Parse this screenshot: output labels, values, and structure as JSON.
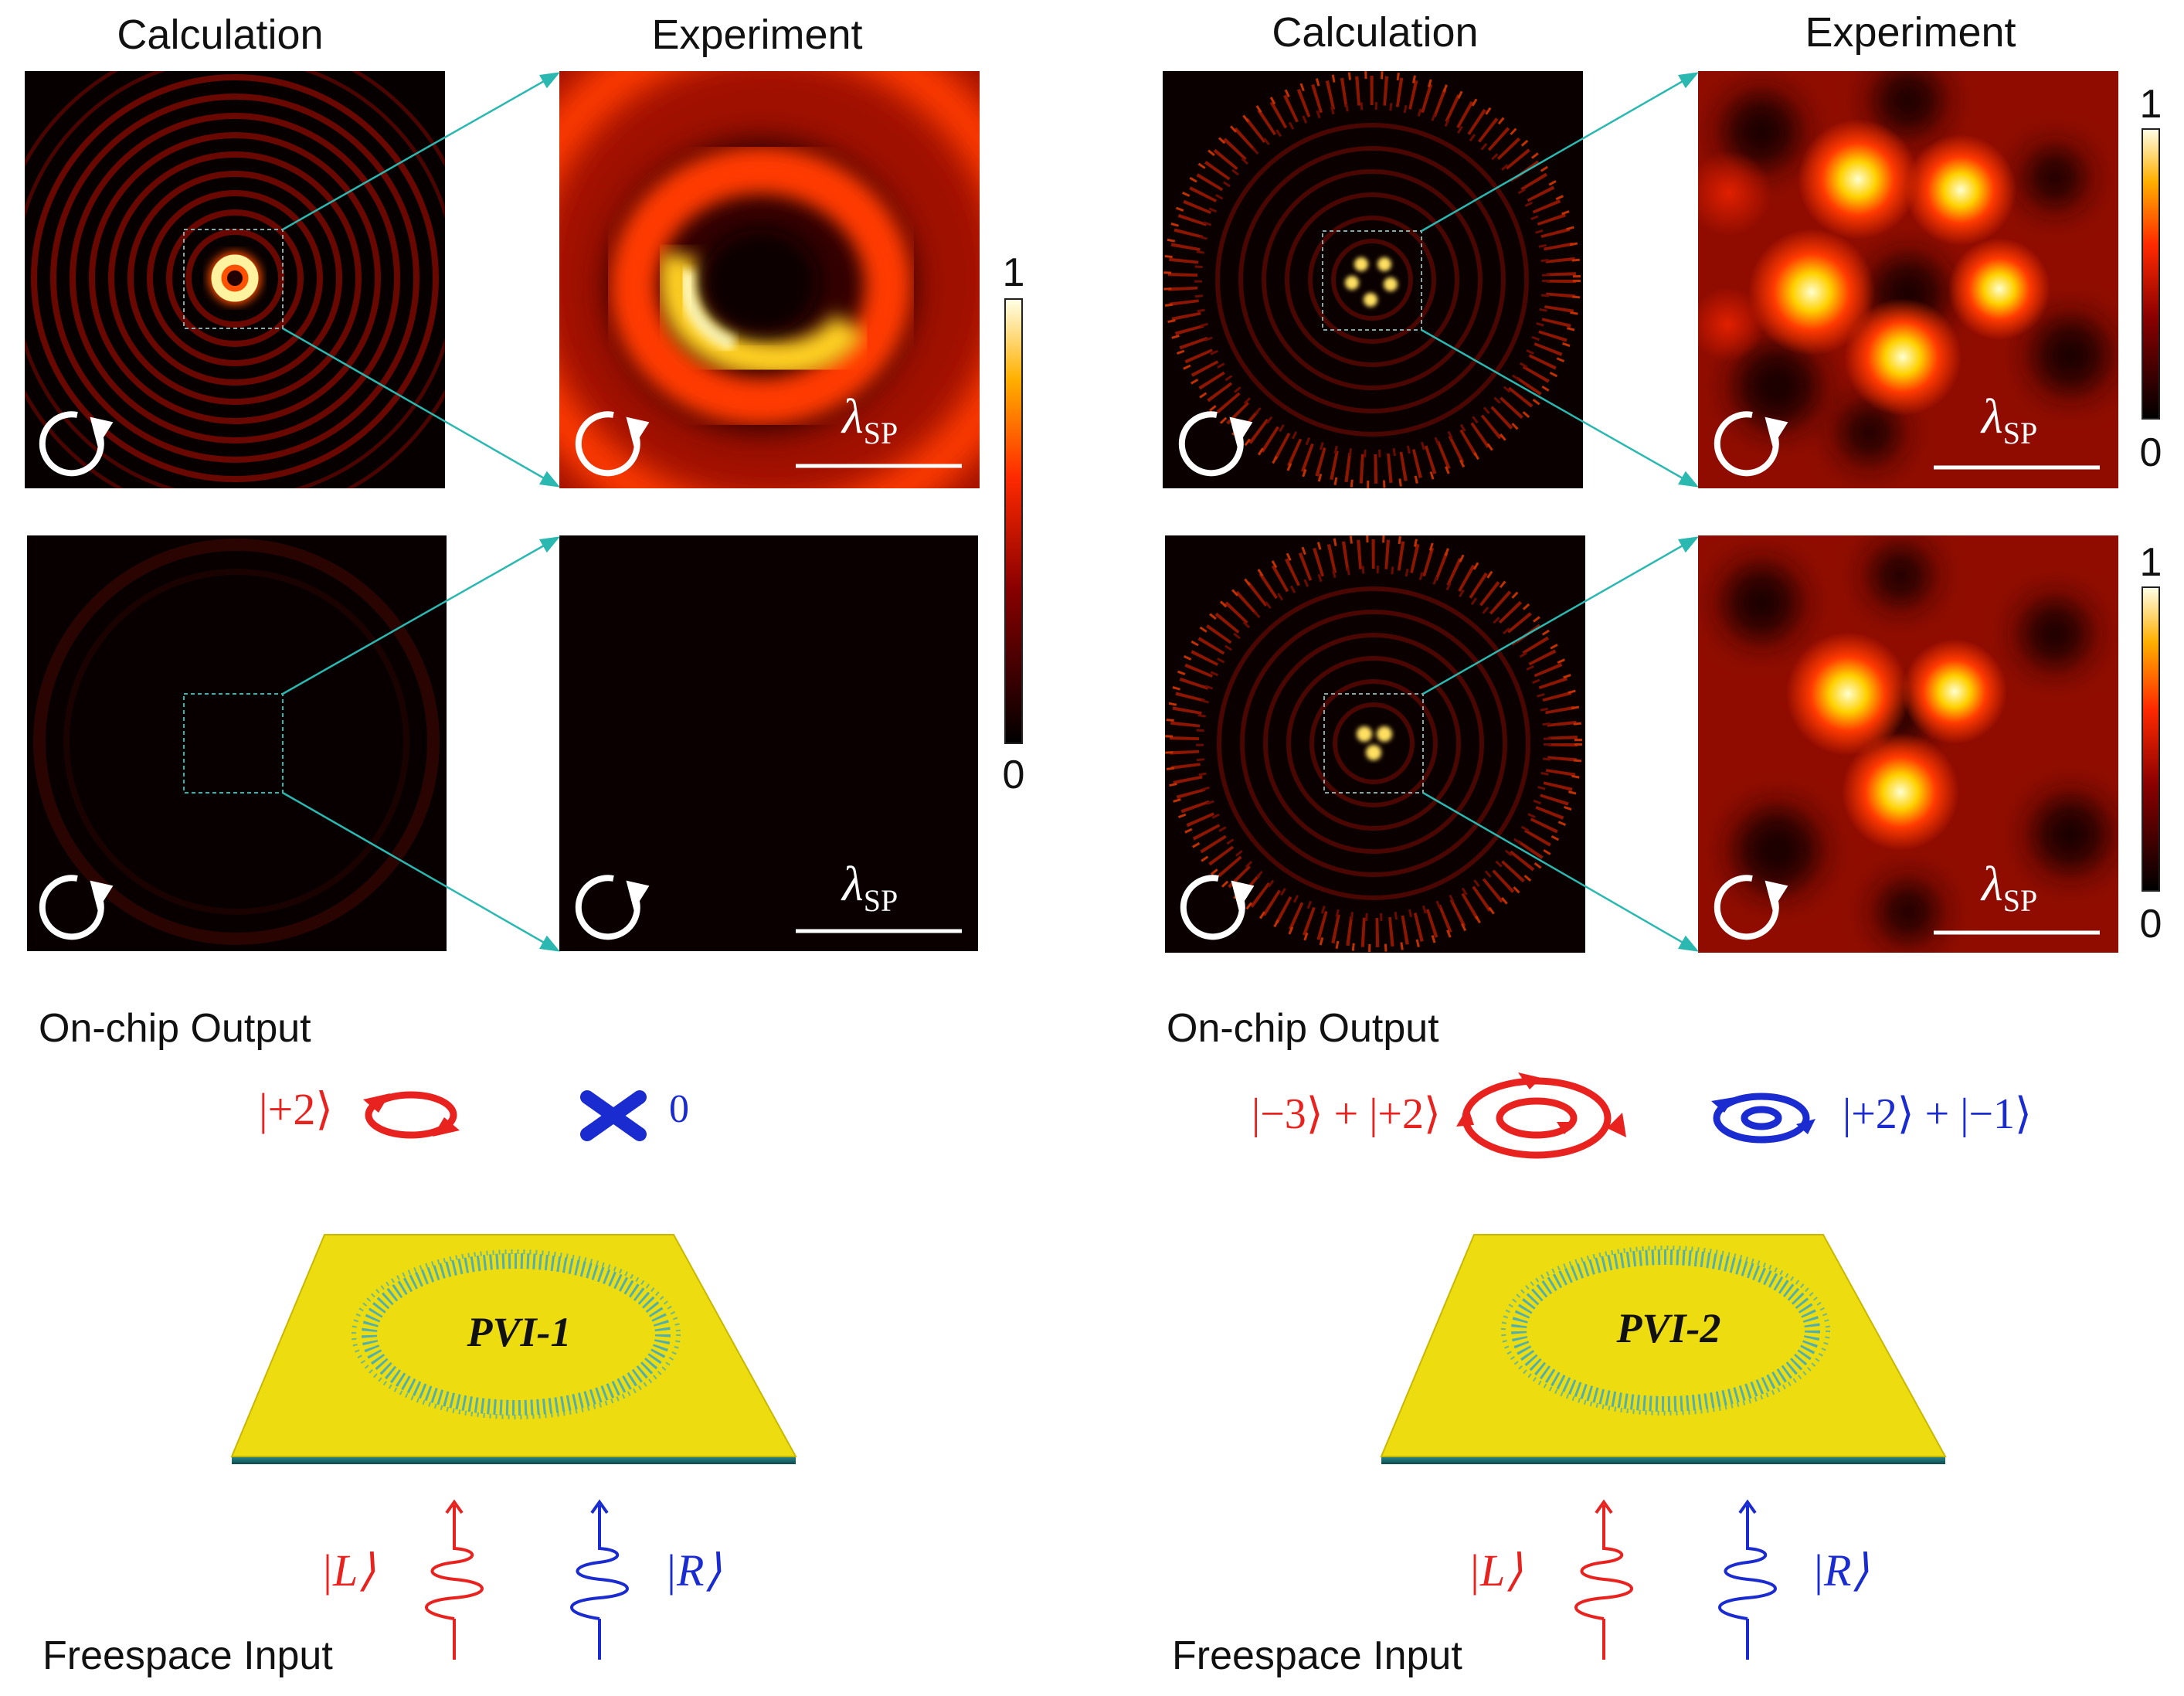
{
  "left": {
    "col_calc": "Calculation",
    "col_exp": "Experiment",
    "output_label": "On-chip Output",
    "output_state_red": "|+2⟩",
    "output_state_blue": "0",
    "device_label": "PVI-1",
    "input_label": "Freespace Input",
    "input_state_red": "|L⟩",
    "input_state_blue": "|R⟩",
    "scale_label": "λ",
    "scale_sub": "SP",
    "colorbar_max": "1",
    "colorbar_min": "0"
  },
  "right": {
    "col_calc": "Calculation",
    "col_exp": "Experiment",
    "output_label": "On-chip Output",
    "output_state_red": "|−3⟩ + |+2⟩",
    "output_state_blue": "|+2⟩ + |−1⟩",
    "device_label": "PVI-2",
    "input_label": "Freespace Input",
    "input_state_red": "|L⟩",
    "input_state_blue": "|R⟩",
    "scale_label": "λ",
    "scale_sub": "SP",
    "colorbar_top_max": "1",
    "colorbar_top_min": "0",
    "colorbar_bottom_max": "1",
    "colorbar_bottom_min": "0"
  },
  "colors": {
    "red_state": "#e8231f",
    "blue_state": "#1a2bd0",
    "arrow_line": "#2bb8b0",
    "chip": "#ecdc10"
  }
}
